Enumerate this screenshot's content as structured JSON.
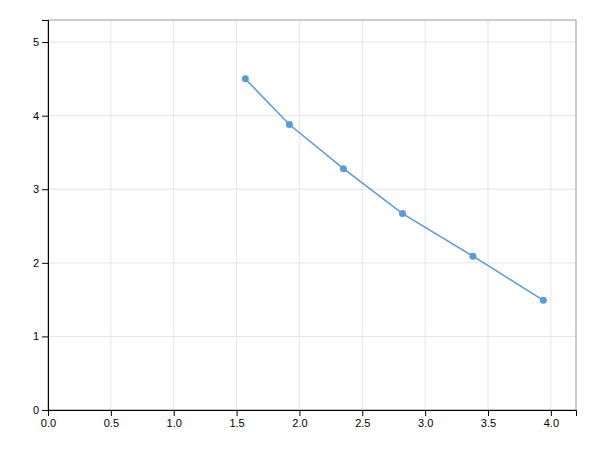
{
  "chart_data": {
    "type": "line",
    "x": [
      1.57,
      1.92,
      2.35,
      2.82,
      3.38,
      3.94
    ],
    "values": [
      4.5,
      3.88,
      3.28,
      2.67,
      2.09,
      1.49
    ],
    "color": "#5b9bd5",
    "marker": "circle",
    "xlim": [
      0.0,
      4.2
    ],
    "ylim": [
      0,
      5.3
    ],
    "xticks": [
      {
        "value": 0.0,
        "label": "0.0"
      },
      0.5,
      {
        "value": 1.0,
        "label": "1.0"
      },
      1.5,
      {
        "value": 2.0,
        "label": "2.0"
      },
      2.5,
      {
        "value": 3.0,
        "label": "3.0"
      },
      3.5,
      {
        "value": 4.0,
        "label": "4.0"
      }
    ],
    "yticks": [
      0,
      1,
      2,
      3,
      4,
      5
    ],
    "grid": true
  }
}
